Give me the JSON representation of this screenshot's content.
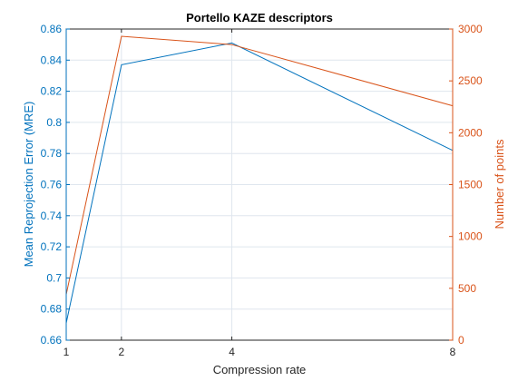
{
  "chart_data": {
    "type": "line",
    "title": "Portello KAZE descriptors",
    "xlabel": "Compression rate",
    "ylabel_left": "Mean Reprojection Error (MRE)",
    "ylabel_right": "Number of points",
    "x": [
      1,
      2,
      4,
      8
    ],
    "x_ticks": [
      1,
      2,
      4,
      8
    ],
    "xlim": [
      1,
      8
    ],
    "ylim_left": [
      0.66,
      0.86
    ],
    "ylim_right": [
      0,
      3000
    ],
    "y_ticks_left": [
      "0.66",
      "0.68",
      "0.7",
      "0.72",
      "0.74",
      "0.76",
      "0.78",
      "0.8",
      "0.82",
      "0.84",
      "0.86"
    ],
    "y_ticks_right": [
      "0",
      "500",
      "1000",
      "1500",
      "2000",
      "2500",
      "3000"
    ],
    "grid": true,
    "series": [
      {
        "axis": "left",
        "color": "#0072BD",
        "values": [
          0.671,
          0.837,
          0.851,
          0.782
        ]
      },
      {
        "axis": "right",
        "color": "#D95319",
        "values": [
          440,
          2930,
          2850,
          2260
        ]
      }
    ]
  }
}
